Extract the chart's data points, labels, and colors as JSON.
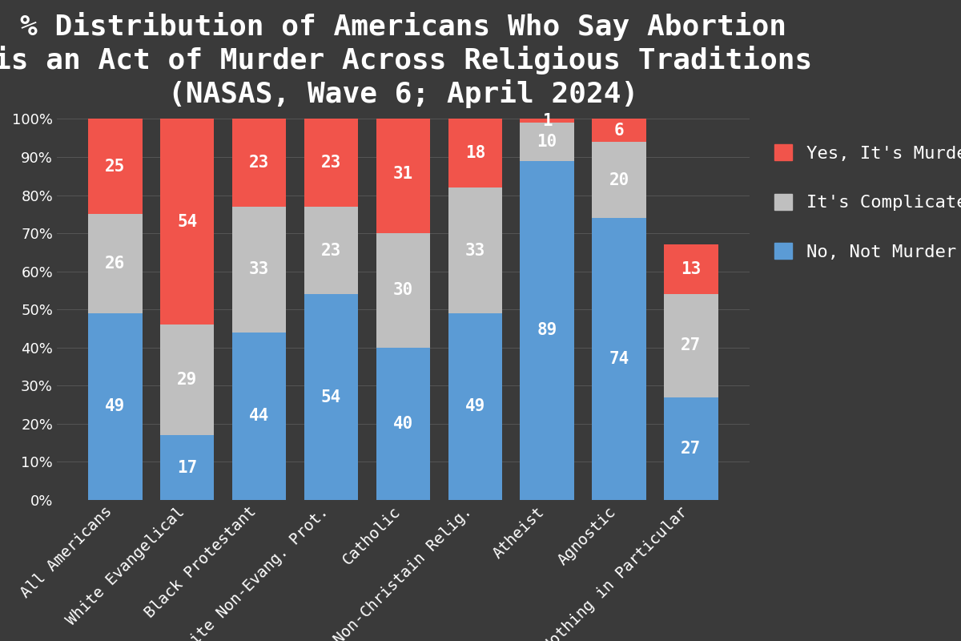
{
  "title": "% Distribution of Americans Who Say Abortion\nis an Act of Murder Across Religious Traditions\n(NASAS, Wave 6; April 2024)",
  "categories": [
    "All Americans",
    "White Evangelical",
    "Black Protestant",
    "White Non-Evang. Prot.",
    "Catholic",
    "Non-Christain Relig.",
    "Atheist",
    "Agnostic",
    "Nothing in Particular"
  ],
  "no_not_murder": [
    49,
    17,
    44,
    54,
    40,
    49,
    89,
    74,
    27
  ],
  "its_complicated": [
    26,
    29,
    33,
    23,
    30,
    33,
    10,
    20,
    27
  ],
  "yes_murder": [
    25,
    54,
    23,
    23,
    31,
    18,
    1,
    6,
    13
  ],
  "colors": {
    "no_not_murder": "#5B9BD5",
    "its_complicated": "#BFBFBF",
    "yes_murder": "#F1544B"
  },
  "background_color": "#3A3A3A",
  "text_color": "#FFFFFF",
  "title_fontsize": 26,
  "label_fontsize": 14,
  "tick_fontsize": 13,
  "legend_fontsize": 16,
  "bar_label_fontsize": 15,
  "yticks": [
    0,
    10,
    20,
    30,
    40,
    50,
    60,
    70,
    80,
    90,
    100
  ]
}
